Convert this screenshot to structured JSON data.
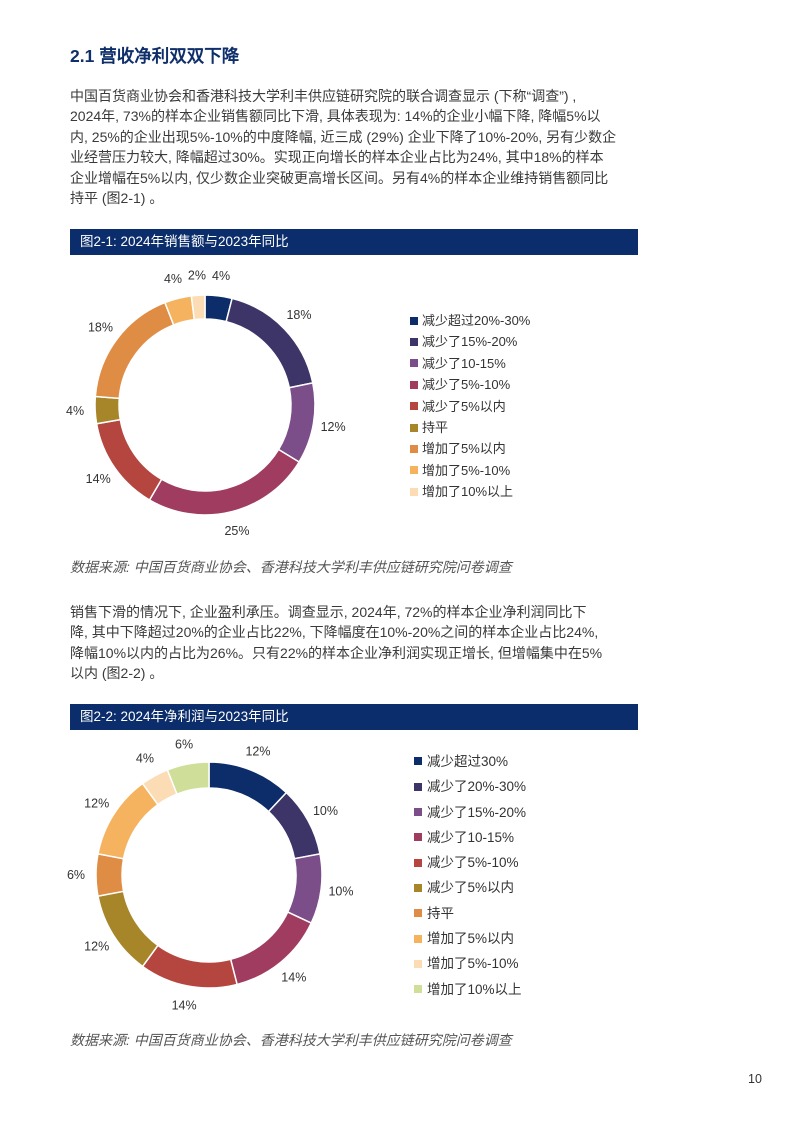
{
  "section": {
    "title": "2.1 营收净利双双下降"
  },
  "body": {
    "paragraph1": [
      "中国百货商业协会和香港科技大学利丰供应链研究院的联合调查显示 (下称“调查”) ,",
      "2024年, 73%的样本企业销售额同比下滑, 具体表现为: 14%的企业小幅下降, 降幅5%以",
      "内, 25%的企业出现5%-10%的中度降幅, 近三成 (29%) 企业下降了10%-20%, 另有少数企",
      "业经营压力较大, 降幅超过30%。实现正向增长的样本企业占比为24%, 其中18%的样本",
      "企业增幅在5%以内, 仅少数企业突破更高增长区间。另有4%的样本企业维持销售额同比",
      "持平 (图2-1) 。"
    ],
    "paragraph2": [
      "销售下滑的情况下, 企业盈利承压。调查显示, 2024年, 72%的样本企业净利润同比下",
      "降, 其中下降超过20%的企业占比22%, 下降幅度在10%-20%之间的样本企业占比24%,",
      "降幅10%以内的占比为26%。只有22%的样本企业净利润实现正增长, 但增幅集中在5%",
      "以内 (图2-2) 。"
    ]
  },
  "page_number": "10",
  "chart_data": [
    {
      "type": "pie",
      "donut": true,
      "title": "图2-1: 2024年销售额与2023年同比",
      "categories": [
        "减少超过20%-30%",
        "减少了15%-20%",
        "减少了10-15%",
        "减少了5%-10%",
        "减少了5%以内",
        "持平",
        "增加了5%以内",
        "增加了5%-10%",
        "增加了10%以上"
      ],
      "values": [
        4,
        18,
        12,
        25,
        14,
        4,
        18,
        4,
        2
      ],
      "unit": "%",
      "colors": [
        "#0c2c6a",
        "#3d3467",
        "#7b4d89",
        "#9f3c5f",
        "#b4453f",
        "#a7862a",
        "#df8c44",
        "#f5b35f",
        "#fbdcb5"
      ],
      "legend_position": "right",
      "source": "数据来源: 中国百货商业协会、香港科技大学利丰供应链研究院问卷调查"
    },
    {
      "type": "pie",
      "donut": true,
      "title": "图2-2: 2024年净利润与2023年同比",
      "categories": [
        "减少超过30%",
        "减少了20%-30%",
        "减少了15%-20%",
        "减少了10-15%",
        "减少了5%-10%",
        "减少了5%以内",
        "持平",
        "增加了5%以内",
        "增加了5%-10%",
        "增加了10%以上"
      ],
      "values": [
        12,
        10,
        10,
        14,
        14,
        12,
        6,
        12,
        4,
        6
      ],
      "unit": "%",
      "colors": [
        "#0c2c6a",
        "#3d3467",
        "#7b4d89",
        "#9f3c5f",
        "#b4453f",
        "#a7862a",
        "#df8c44",
        "#f5b35f",
        "#fbdcb5",
        "#cfdf99"
      ],
      "legend_position": "right",
      "source": "数据来源: 中国百货商业协会、香港科技大学利丰供应链研究院问卷调查"
    }
  ]
}
